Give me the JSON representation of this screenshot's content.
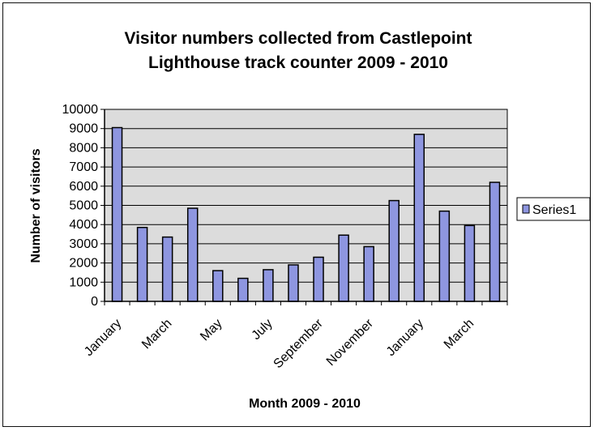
{
  "chart_data": {
    "type": "bar",
    "title": [
      "Visitor numbers collected from Castlepoint",
      "Lighthouse track counter  2009 - 2010"
    ],
    "xlabel": "Month 2009 - 2010",
    "ylabel": "Number of visitors",
    "ylim": [
      0,
      10000
    ],
    "yticks": [
      0,
      1000,
      2000,
      3000,
      4000,
      5000,
      6000,
      7000,
      8000,
      9000,
      10000
    ],
    "x_tick_labels": [
      "January",
      "March",
      "May",
      "July",
      "September",
      "November",
      "January",
      "March"
    ],
    "categories": [
      "January",
      "",
      "March",
      "",
      "May",
      "",
      "July",
      "",
      "September",
      "",
      "November",
      "",
      "January",
      "",
      "March",
      ""
    ],
    "series": [
      {
        "name": "Series1",
        "values": [
          9050,
          3850,
          3350,
          4850,
          1600,
          1200,
          1650,
          1900,
          2300,
          3450,
          2850,
          5250,
          8700,
          4700,
          3950,
          6200
        ]
      }
    ],
    "grid": true,
    "legend_position": "right",
    "colors": {
      "bar_fill": "#8e96e0",
      "bar_stroke": "#000000",
      "plot_bg": "#dcdcdc",
      "gridline": "#000000"
    }
  }
}
